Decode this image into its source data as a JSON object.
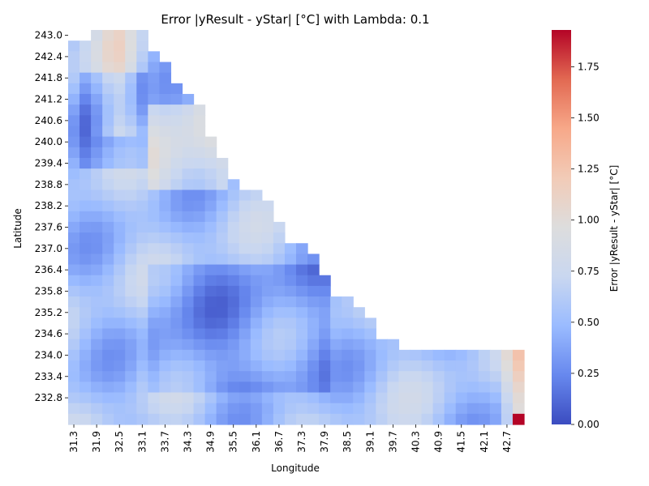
{
  "chart_data": {
    "type": "heatmap",
    "title": "Error |yResult - yStar| [°C] with Lambda: 0.1",
    "xlabel": "Longitude",
    "ylabel": "Latitude",
    "colorbar_label": "Error |yResult - yStar| [°C]",
    "colormap": "coolwarm",
    "colormap_stops": [
      "#3b4cc0",
      "#6788ee",
      "#9abbff",
      "#c9d7f0",
      "#dddddd",
      "#f2cbb7",
      "#f7a889",
      "#e26952",
      "#b40426"
    ],
    "x_ticks": [
      "31.3",
      "31.9",
      "32.5",
      "33.1",
      "33.7",
      "34.3",
      "34.9",
      "35.5",
      "36.1",
      "36.7",
      "37.3",
      "37.9",
      "38.5",
      "39.1",
      "39.7",
      "40.3",
      "40.9",
      "41.5",
      "42.1",
      "42.7"
    ],
    "y_ticks": [
      "243.0",
      "242.4",
      "241.8",
      "241.2",
      "240.6",
      "240.0",
      "239.4",
      "238.8",
      "238.2",
      "237.6",
      "237.0",
      "236.4",
      "235.8",
      "235.2",
      "234.6",
      "234.0",
      "233.4",
      "232.8"
    ],
    "colorbar_ticks": [
      "0.00",
      "0.25",
      "0.50",
      "0.75",
      "1.00",
      "1.25",
      "1.50",
      "1.75"
    ],
    "value_range": [
      0,
      1.93
    ],
    "grid": {
      "n_cols": 40,
      "n_rows": 37,
      "x_start": 31.3,
      "x_step": 0.3,
      "y_start": 243.0,
      "y_step": -0.3
    },
    "region_notes": "Values are approximate readings of cell colors; blank cells (NaN) lie above/right of the diagonal coast edge.",
    "boundary_last_valid_column_by_row": [
      6,
      6,
      7,
      8,
      8,
      9,
      10,
      10,
      10,
      11,
      11,
      11,
      12,
      12,
      13,
      13,
      15,
      15,
      15,
      17,
      17,
      18,
      18,
      19,
      19,
      20,
      20,
      21,
      21,
      22,
      22,
      23,
      25,
      27,
      29,
      31,
      39
    ],
    "first_valid_column_by_row": [
      2,
      0,
      0,
      0,
      0,
      0,
      0,
      0,
      0,
      0,
      0,
      0,
      0,
      0,
      0,
      0,
      0,
      0,
      0,
      0,
      0,
      0,
      0,
      0,
      0,
      0,
      0,
      0,
      0,
      0,
      0,
      0,
      0,
      0,
      0,
      0,
      0
    ],
    "last_valid_column_by_row": [
      6,
      6,
      7,
      8,
      8,
      9,
      10,
      11,
      11,
      11,
      12,
      12,
      13,
      13,
      14,
      16,
      17,
      17,
      18,
      18,
      20,
      21,
      21,
      22,
      22,
      24,
      25,
      26,
      26,
      28,
      39,
      39,
      39,
      39,
      39,
      39,
      39
    ]
  }
}
